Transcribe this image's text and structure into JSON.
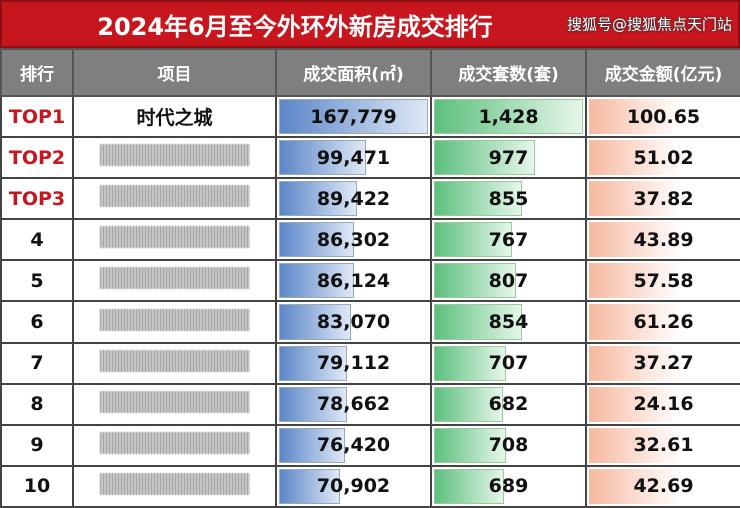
{
  "title": "2024年6月至今外环外新房成交排行",
  "headers": [
    "排行",
    "项目",
    "成交面积(㎡)",
    "成交套数(套)",
    "成交金额(亿元)"
  ],
  "rows": [
    {
      "rank": "TOP1",
      "project": "时代之城",
      "area": "167,779",
      "area_v": 167779,
      "units": "1,428",
      "units_v": 1428,
      "amount": "100.65"
    },
    {
      "rank": "TOP2",
      "project": "",
      "area": "99,471",
      "area_v": 99471,
      "units": "977",
      "units_v": 977,
      "amount": "51.02"
    },
    {
      "rank": "TOP3",
      "project": "",
      "area": "89,422",
      "area_v": 89422,
      "units": "855",
      "units_v": 855,
      "amount": "37.82"
    },
    {
      "rank": "4",
      "project": "",
      "area": "86,302",
      "area_v": 86302,
      "units": "767",
      "units_v": 767,
      "amount": "43.89"
    },
    {
      "rank": "5",
      "project": "",
      "area": "86,124",
      "area_v": 86124,
      "units": "807",
      "units_v": 807,
      "amount": "57.58"
    },
    {
      "rank": "6",
      "project": "",
      "area": "83,070",
      "area_v": 83070,
      "units": "854",
      "units_v": 854,
      "amount": "61.26"
    },
    {
      "rank": "7",
      "project": "",
      "area": "79,112",
      "area_v": 79112,
      "units": "707",
      "units_v": 707,
      "amount": "37.27"
    },
    {
      "rank": "8",
      "project": "",
      "area": "78,662",
      "area_v": 78662,
      "units": "682",
      "units_v": 682,
      "amount": "24.16"
    },
    {
      "rank": "9",
      "project": "",
      "area": "76,420",
      "area_v": 76420,
      "units": "708",
      "units_v": 708,
      "amount": "32.61"
    },
    {
      "rank": "10",
      "project": "",
      "area": "70,902",
      "area_v": 70902,
      "units": "689",
      "units_v": 689,
      "amount": "42.69"
    }
  ],
  "watermark": "搜狐号@搜狐焦点天门站",
  "colors": {
    "title_bg": "#c8161e",
    "header_bg": "#7f7f7f",
    "top_rank": "#c8161e"
  }
}
